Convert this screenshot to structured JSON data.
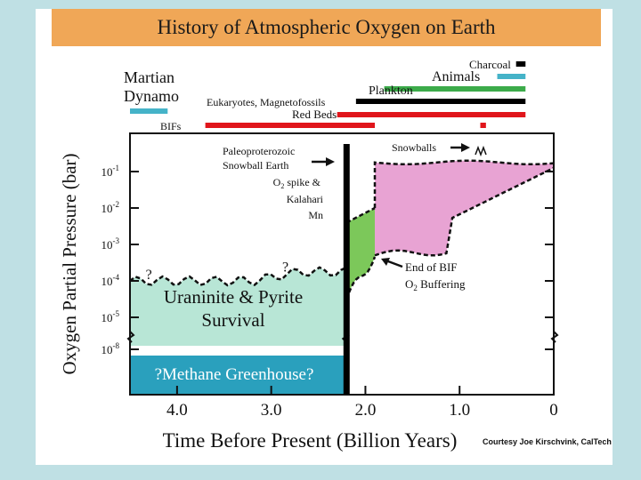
{
  "title": "History of Atmospheric Oxygen on Earth",
  "credit": "Courtesy Joe Kirschvink, CalTech",
  "colors": {
    "banner": "#f0a757",
    "uraninite_region": "#b8e6d6",
    "methane_region": "#2aa0bd",
    "transition_region": "#7cc85a",
    "modern_region": "#e8a3d3",
    "event_black": "#000000",
    "event_red": "#e0151b",
    "event_green": "#3cab4a",
    "event_blue": "#45b3c8"
  },
  "chart_data": {
    "type": "area",
    "title": "History of Atmospheric Oxygen on Earth",
    "xlabel": "Time Before Present (Billion Years)",
    "ylabel": "Oxygen Partial Pressure (bar)",
    "x_reversed": true,
    "xlim": [
      4.5,
      0
    ],
    "x_ticks": [
      {
        "value": 4.0,
        "label": "4.0"
      },
      {
        "value": 3.0,
        "label": "3.0"
      },
      {
        "value": 2.0,
        "label": "2.0"
      },
      {
        "value": 1.0,
        "label": "1.0"
      },
      {
        "value": 0,
        "label": "0"
      }
    ],
    "y_scale": "log",
    "y_ticks": [
      {
        "exp": -8,
        "label": "10-8"
      },
      {
        "exp": -5,
        "label": "10-5"
      },
      {
        "exp": -4,
        "label": "10-4"
      },
      {
        "exp": -3,
        "label": "10-3"
      },
      {
        "exp": -2,
        "label": "10-2"
      },
      {
        "exp": -1,
        "label": "10-1"
      }
    ],
    "y_break": "between 10-8 and 10-5",
    "regions": [
      {
        "label": "Uraninite & Pyrite Survival",
        "x_range": [
          4.5,
          2.2
        ],
        "upper_bound_exp": -4
      },
      {
        "label": "?Methane Greenhouse?",
        "x_range": [
          4.5,
          2.2
        ],
        "below_break": true
      },
      {
        "label": "",
        "x_range": [
          2.2,
          1.9
        ],
        "lower_exp": [
          -4.5,
          -3.3
        ],
        "upper_exp": [
          -2.4,
          -2.0
        ]
      },
      {
        "label": "",
        "x_range": [
          1.9,
          0
        ],
        "lower_exp": [
          -3.3,
          -0.9
        ],
        "upper_exp": [
          -0.7,
          -0.8
        ]
      }
    ],
    "question_marks": [
      {
        "x": 4.3,
        "exp": -3.8,
        "label": "?"
      },
      {
        "x": 2.85,
        "exp": -3.6,
        "label": "?"
      }
    ],
    "event_line": {
      "x": 2.2,
      "label_lines": [
        "Paleoproterozoic",
        "Snowball Earth"
      ]
    },
    "annotations": [
      {
        "lines": [
          "O2 spike &",
          "Kalahari",
          "Mn"
        ]
      },
      {
        "lines": [
          "End of BIF",
          "O2 Buffering"
        ]
      },
      {
        "text": "Snowballs"
      }
    ],
    "time_bars": [
      {
        "label": "Charcoal",
        "color": "#000000",
        "start": 0.4,
        "end": 0.3
      },
      {
        "label": "Animals",
        "color": "#45b3c8",
        "start": 0.6,
        "end": 0.3
      },
      {
        "label": "Plankton",
        "color": "#3cab4a",
        "start": 1.8,
        "end": 0.3
      },
      {
        "label": "Eukaryotes, Magnetofossils",
        "color": "#000000",
        "start": 2.1,
        "end": 0.3
      },
      {
        "label": "Red Beds",
        "color": "#e0151b",
        "start": 2.3,
        "end": 0.3
      },
      {
        "label": "BIFs",
        "color": "#e0151b",
        "start": 3.7,
        "end": 1.9
      },
      {
        "label": "",
        "color": "#e0151b",
        "start": 0.78,
        "end": 0.72
      },
      {
        "label": "Martian Dynamo",
        "color": "#45b3c8",
        "start": 4.5,
        "end": 4.1
      }
    ]
  }
}
